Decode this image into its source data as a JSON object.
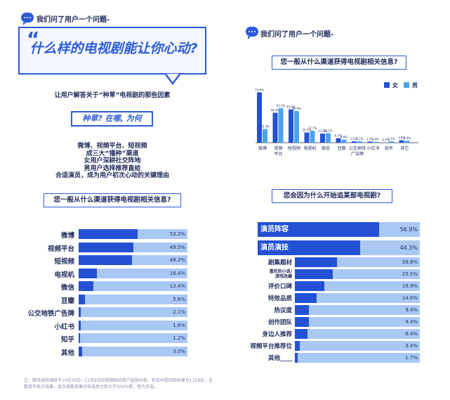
{
  "left": {
    "header": "我们问了用户一个问题-",
    "big_title": "什么样的电视剧能让你心动?",
    "subtitle": "让用户解答关于“种草”电视剧的那些因素",
    "tag": "种草? 在哪, 为何",
    "findings": [
      "微博、视频平台、短视频",
      "成三大“播种”渠道",
      "女用户深耕社交阵地",
      "男用户选择推荐直给",
      "合适演员，成为用户初次心动的关键理由"
    ],
    "section_title": "您一般从什么渠道获得电视剧相关信息?",
    "note": "注：腾讯视频调研于10月30日~11月9日向视频网站用户投放问卷，有效问卷的回收量为1318份，全数用于统计结果。本次调查结果中各选项之和大于100%者，皆为多选。"
  },
  "right": {
    "header": "我们问了用户一个问题-",
    "section_title_1": "您一般从什么渠道获得电视剧相关信息?",
    "section_title_2": "您会因为什么开始追某部电视剧?",
    "legend": {
      "female": "女",
      "male": "男"
    }
  },
  "colors": {
    "primary": "#2451d4",
    "light": "#a9c8f4",
    "female": "#2451d4",
    "male": "#4aa3f0"
  },
  "chart_data": [
    {
      "type": "bar",
      "orientation": "horizontal",
      "title": "您一般从什么渠道获得电视剧相关信息?",
      "categories": [
        "微博",
        "视频平台",
        "短视频",
        "电视机",
        "微信",
        "豆瓣",
        "公交地铁广告牌",
        "小红书",
        "知乎",
        "其他"
      ],
      "values": [
        53.2,
        49.5,
        48.2,
        16.4,
        13.4,
        5.6,
        2.1,
        1.6,
        1.2,
        3.0
      ],
      "labels": [
        "53.2%",
        "49.5%",
        "48.2%",
        "16.4%",
        "13.4%",
        "5.6%",
        "2.1%",
        "1.6%",
        "1.2%",
        "3.0%"
      ]
    },
    {
      "type": "bar",
      "title": "您一般从什么渠道获得电视剧相关信息?",
      "categories": [
        "微博",
        "视频平台",
        "短视频",
        "电视机",
        "微信",
        "豆瓣",
        "公交地铁广告牌",
        "小红书",
        "知乎",
        "其它"
      ],
      "series": [
        {
          "name": "女",
          "values": [
            74.6,
            44.4,
            49.4,
            15.1,
            13.5,
            6.7,
            2.0,
            1.7,
            0.4,
            3.6
          ],
          "labels": [
            "74.6%",
            "44.4%",
            "49.4%",
            "15.1%",
            "13.5%",
            "6.7%",
            "2.0%",
            "1.7%",
            "0.4%",
            "3.6%"
          ]
        },
        {
          "name": "男",
          "values": [
            20.3,
            51.1,
            46.9,
            17.7,
            14.1,
            4.6,
            2.1,
            1.4,
            2.1,
            3.0
          ],
          "labels": [
            "20.3%",
            "51.1%",
            "46.9%",
            "17.7%",
            "14.1%",
            "4.6%",
            "2.1%",
            "1.4%",
            "2.1%",
            "3.0%"
          ]
        }
      ]
    },
    {
      "type": "bar",
      "orientation": "horizontal",
      "title": "您会因为什么开始追某部电视剧?",
      "categories": [
        "演员阵容",
        "演员演技",
        "剧集题材",
        "喜欢的小说/游戏改编",
        "评价口碑",
        "特效品质",
        "热议度",
        "创作团队",
        "身边人推荐",
        "视频平台推荐位",
        "其他____"
      ],
      "values": [
        56.9,
        44.3,
        28.8,
        25.5,
        19.9,
        14.6,
        9.4,
        9.4,
        8.4,
        3.4,
        1.7
      ],
      "labels": [
        "56.9%",
        "44.3%",
        "28.8%",
        "25.5%",
        "19.9%",
        "14.6%",
        "9.4%",
        "9.4%",
        "8.4%",
        "3.4%",
        "1.7%"
      ]
    }
  ]
}
